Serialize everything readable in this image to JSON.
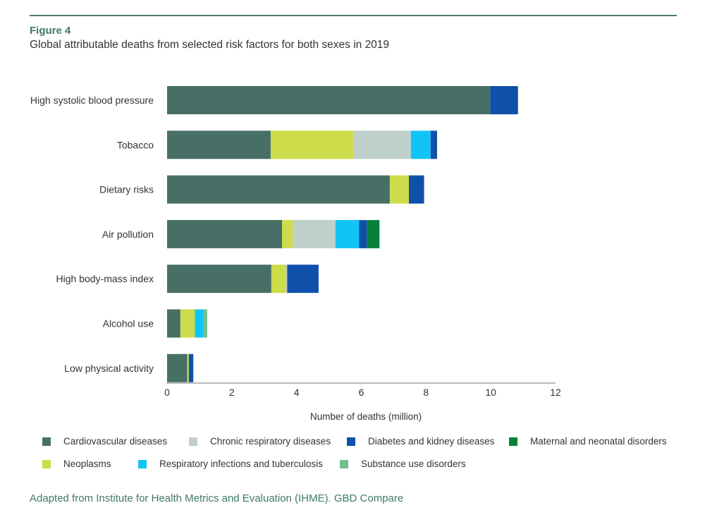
{
  "figure_label": "Figure 4",
  "subtitle": "Global attributable deaths from selected risk factors for both sexes in 2019",
  "source": "Adapted from Institute for Health Metrics and Evaluation (IHME). GBD Compare",
  "chart_data": {
    "type": "bar",
    "orientation": "horizontal",
    "stacked": true,
    "xlabel": "Number of deaths (million)",
    "xlim": [
      0,
      12
    ],
    "xticks": [
      "0",
      "2",
      "4",
      "6",
      "8",
      "10",
      "12"
    ],
    "grid": false,
    "legend_placement": "bottom",
    "categories": [
      "High systolic blood pressure",
      "Tobacco",
      "Dietary  risks",
      "Air pollution",
      "High body-mass index",
      "Alcohol use",
      "Low physical activity"
    ],
    "series": [
      {
        "name": "Cardiovascular diseases",
        "color": "#476f65",
        "values": [
          9.98,
          3.2,
          6.88,
          3.55,
          3.22,
          0.41,
          0.62
        ]
      },
      {
        "name": "Neoplasms",
        "color": "#cddc4a",
        "values": [
          0,
          2.57,
          0.59,
          0.34,
          0.45,
          0.45,
          0.05
        ]
      },
      {
        "name": "Chronic respiratory diseases",
        "color": "#bfcfca",
        "values": [
          0,
          1.76,
          0,
          1.31,
          0.04,
          0,
          0
        ]
      },
      {
        "name": "Respiratory infections and tuberculosis",
        "color": "#12c4f5",
        "values": [
          0,
          0.61,
          0,
          0.73,
          0,
          0.26,
          0
        ]
      },
      {
        "name": "Diabetes and kidney diseases",
        "color": "#0f50ab",
        "values": [
          0.86,
          0.2,
          0.47,
          0.24,
          0.97,
          0,
          0.14
        ]
      },
      {
        "name": "Maternal and neonatal disorders",
        "color": "#08803a",
        "values": [
          0,
          0,
          0,
          0.39,
          0,
          0,
          0
        ]
      },
      {
        "name": "Substance use disorders",
        "color": "#72c08f",
        "values": [
          0,
          0,
          0,
          0,
          0,
          0.12,
          0
        ]
      }
    ]
  },
  "legend_order": [
    0,
    2,
    4,
    5,
    1,
    3,
    6
  ]
}
